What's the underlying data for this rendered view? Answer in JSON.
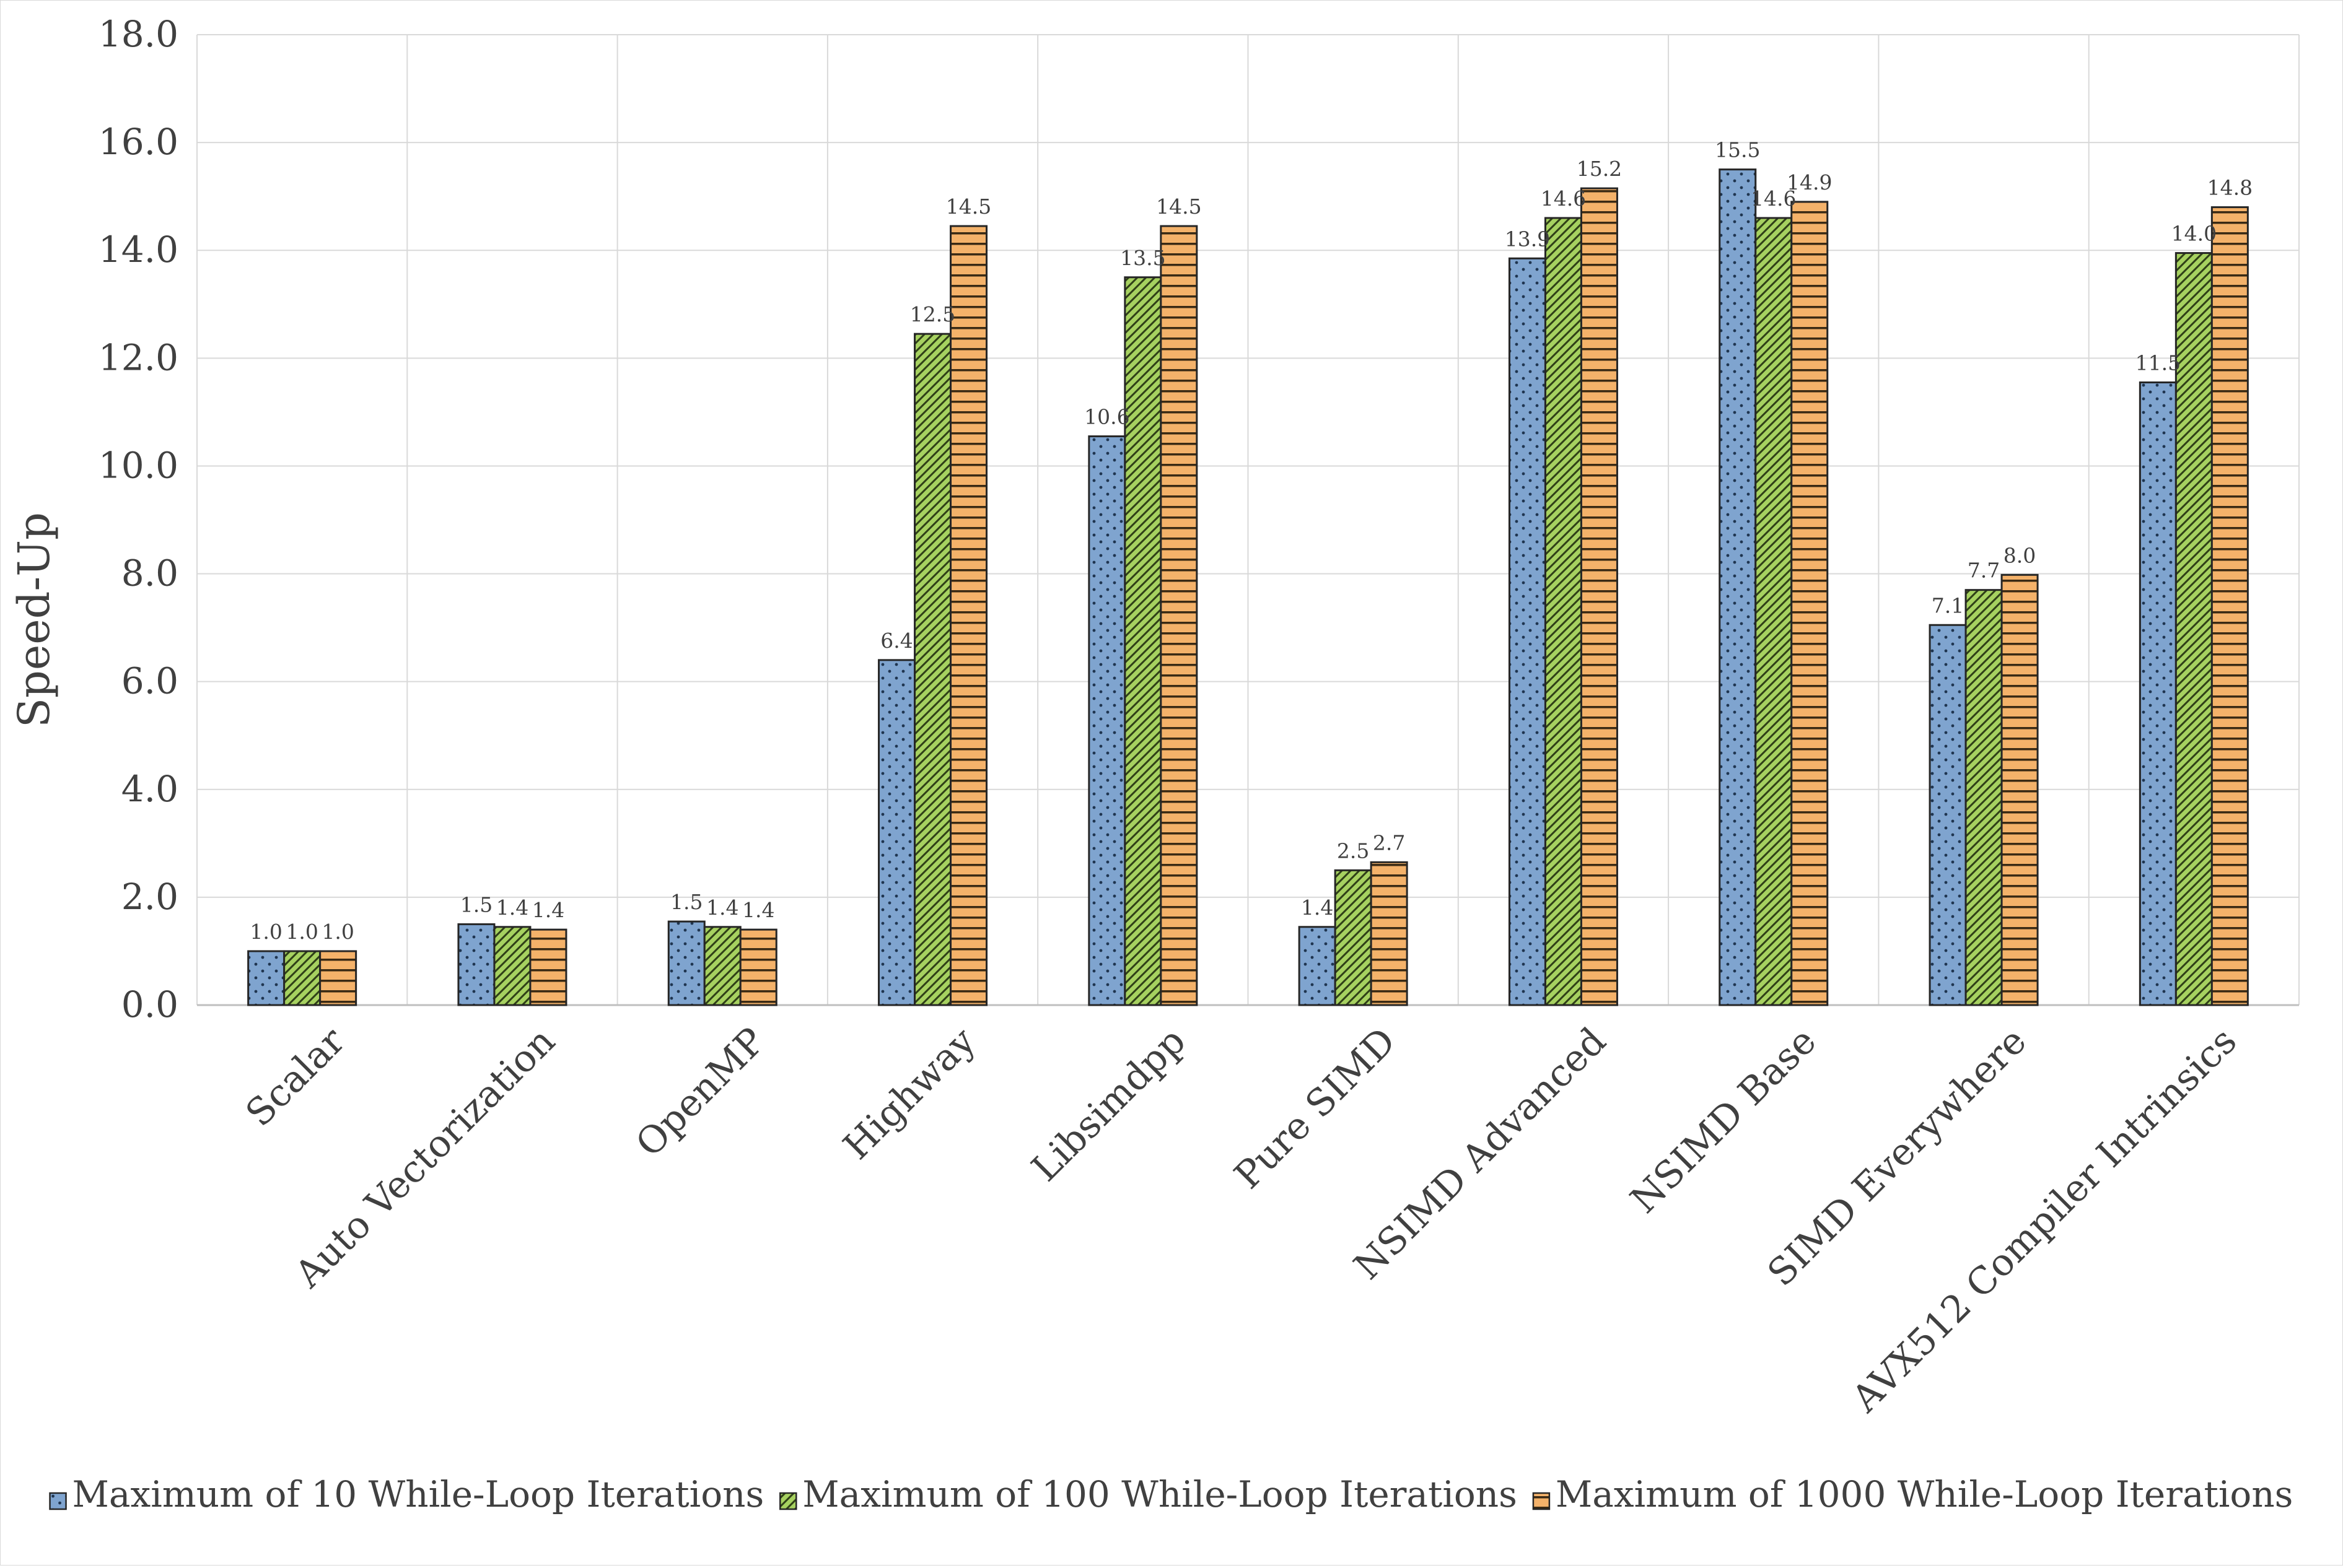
{
  "chart_data": {
    "type": "bar",
    "ylabel": "Speed-Up",
    "xlabel": "",
    "ylim": [
      0,
      18
    ],
    "yticks": [
      "0.0",
      "2.0",
      "4.0",
      "6.0",
      "8.0",
      "10.0",
      "12.0",
      "14.0",
      "16.0",
      "18.0"
    ],
    "grid": true,
    "legend_position": "bottom",
    "categories": [
      "Scalar",
      "Auto Vectorization",
      "OpenMP",
      "Highway",
      "Libsimdpp",
      "Pure SIMD",
      "NSIMD Advanced",
      "NSIMD Base",
      "SIMD Everywhere",
      "AVX512 Compiler Intrinsics"
    ],
    "series": [
      {
        "name": "Maximum of 10 While-Loop Iterations",
        "color": "#7fa4cf",
        "pattern": "dots",
        "values": [
          1.0,
          1.5,
          1.55,
          6.4,
          10.55,
          1.45,
          13.85,
          15.5,
          7.05,
          11.55
        ],
        "labels": [
          "1.0",
          "1.5",
          "1.5",
          "6.4",
          "10.6",
          "1.4",
          "13.9",
          "15.5",
          "7.1",
          "11.5"
        ]
      },
      {
        "name": "Maximum of 100 While-Loop Iterations",
        "color": "#a6d160",
        "pattern": "diagonal",
        "values": [
          1.0,
          1.45,
          1.45,
          12.45,
          13.5,
          2.5,
          14.6,
          14.6,
          7.7,
          13.95
        ],
        "labels": [
          "1.0",
          "1.4",
          "1.4",
          "12.5",
          "13.5",
          "2.5",
          "14.6",
          "14.6",
          "7.7",
          "14.0"
        ]
      },
      {
        "name": "Maximum of 1000 While-Loop Iterations",
        "color": "#f4b26a",
        "pattern": "horizontal",
        "values": [
          1.0,
          1.4,
          1.4,
          14.45,
          14.45,
          2.65,
          15.15,
          14.9,
          7.98,
          14.8
        ],
        "labels": [
          "1.0",
          "1.4",
          "1.4",
          "14.5",
          "14.5",
          "2.7",
          "15.2",
          "14.9",
          "8.0",
          "14.8"
        ]
      }
    ]
  }
}
